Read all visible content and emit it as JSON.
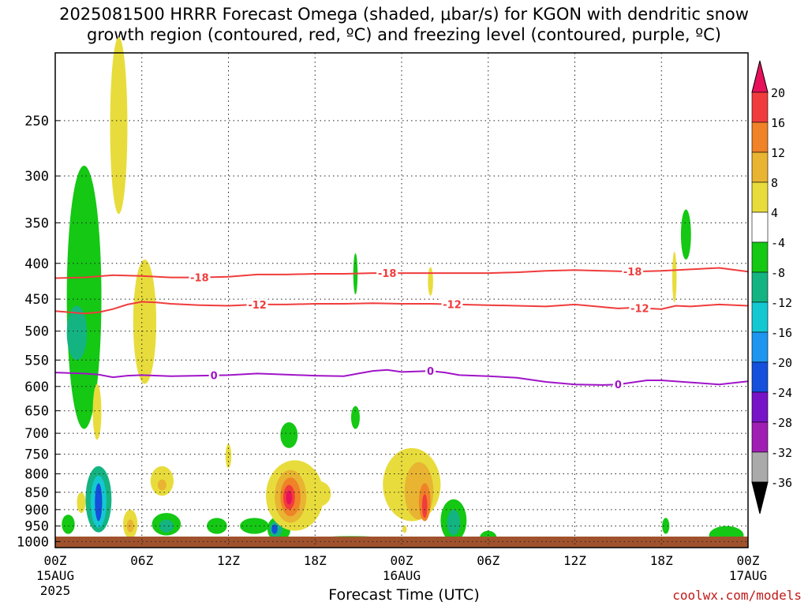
{
  "title": {
    "line1": "2025081500 HRRR Forecast Omega (shaded, μbar/s) for KGON with dendritic snow",
    "line2": "growth region (contoured, red, ºC) and freezing level (contoured, purple, ºC)"
  },
  "credit": "coolwx.com/models",
  "chart_data": {
    "type": "heatmap",
    "title": "2025081500 HRRR Forecast Omega (shaded, μbar/s) for KGON with dendritic snow growth region (contoured, red, ºC) and freezing level (contoured, purple, ºC)",
    "xlabel": "Forecast Time (UTC)",
    "ylabel": "",
    "x_range_hours": [
      0,
      48
    ],
    "y_range_hpa": [
      1020,
      200
    ],
    "grid": true,
    "x_ticks": [
      {
        "hour": 0,
        "label": "00Z",
        "sub1": "15AUG",
        "sub2": "2025"
      },
      {
        "hour": 6,
        "label": "06Z",
        "sub1": "",
        "sub2": ""
      },
      {
        "hour": 12,
        "label": "12Z",
        "sub1": "",
        "sub2": ""
      },
      {
        "hour": 18,
        "label": "18Z",
        "sub1": "",
        "sub2": ""
      },
      {
        "hour": 24,
        "label": "00Z",
        "sub1": "16AUG",
        "sub2": ""
      },
      {
        "hour": 30,
        "label": "06Z",
        "sub1": "",
        "sub2": ""
      },
      {
        "hour": 36,
        "label": "12Z",
        "sub1": "",
        "sub2": ""
      },
      {
        "hour": 42,
        "label": "18Z",
        "sub1": "",
        "sub2": ""
      },
      {
        "hour": 48,
        "label": "00Z",
        "sub1": "17AUG",
        "sub2": ""
      }
    ],
    "y_ticks": [
      250,
      300,
      350,
      400,
      450,
      500,
      550,
      600,
      650,
      700,
      750,
      800,
      850,
      900,
      950,
      1000
    ],
    "colorbar": {
      "labels": [
        "20",
        "16",
        "12",
        "8",
        "4",
        "-4",
        "-8",
        "-12",
        "-16",
        "-20",
        "-24",
        "-28",
        "-32",
        "-36"
      ],
      "colors": [
        "#e8105a",
        "#f03c3c",
        "#f08228",
        "#e8b432",
        "#e8dc3c",
        "#ffffff",
        "#14c814",
        "#14b482",
        "#14c8d2",
        "#1e96f0",
        "#1450dc",
        "#7814c8",
        "#a01eb4",
        "#aaaaaa",
        "#000000"
      ]
    },
    "contours": [
      {
        "name": "-18",
        "color": "#f03c3c",
        "labels_at_hours": [
          10,
          23,
          40
        ],
        "points": [
          [
            0,
            420
          ],
          [
            2,
            419
          ],
          [
            4,
            416
          ],
          [
            6,
            417
          ],
          [
            8,
            419
          ],
          [
            10,
            419
          ],
          [
            12,
            418
          ],
          [
            14,
            415
          ],
          [
            16,
            415
          ],
          [
            18,
            414
          ],
          [
            20,
            414
          ],
          [
            22,
            413
          ],
          [
            24,
            413
          ],
          [
            26,
            413
          ],
          [
            28,
            413
          ],
          [
            30,
            413
          ],
          [
            32,
            412
          ],
          [
            34,
            410
          ],
          [
            36,
            409
          ],
          [
            38,
            410
          ],
          [
            40,
            411
          ],
          [
            42,
            410
          ],
          [
            44,
            408
          ],
          [
            46,
            406
          ],
          [
            48,
            411
          ]
        ]
      },
      {
        "name": "-12",
        "color": "#f03c3c",
        "labels_at_hours": [
          14,
          27.5,
          40.5
        ],
        "points": [
          [
            0,
            468
          ],
          [
            1,
            470
          ],
          [
            2,
            472
          ],
          [
            3,
            470
          ],
          [
            4,
            465
          ],
          [
            5,
            458
          ],
          [
            6,
            454
          ],
          [
            7,
            455
          ],
          [
            8,
            457
          ],
          [
            10,
            459
          ],
          [
            12,
            460
          ],
          [
            14,
            458
          ],
          [
            16,
            458
          ],
          [
            18,
            457
          ],
          [
            20,
            457
          ],
          [
            22,
            456
          ],
          [
            24,
            457
          ],
          [
            26,
            457
          ],
          [
            28,
            458
          ],
          [
            30,
            459
          ],
          [
            32,
            460
          ],
          [
            34,
            461
          ],
          [
            36,
            458
          ],
          [
            38,
            462
          ],
          [
            39,
            464
          ],
          [
            40,
            463
          ],
          [
            42,
            465
          ],
          [
            43,
            460
          ],
          [
            44,
            461
          ],
          [
            46,
            458
          ],
          [
            48,
            460
          ]
        ]
      },
      {
        "name": "0",
        "color": "#a014c8",
        "labels_at_hours": [
          11,
          26,
          39
        ],
        "points": [
          [
            0,
            573
          ],
          [
            2,
            575
          ],
          [
            3,
            577
          ],
          [
            4,
            582
          ],
          [
            5,
            579
          ],
          [
            6,
            578
          ],
          [
            8,
            580
          ],
          [
            10,
            579
          ],
          [
            12,
            578
          ],
          [
            14,
            575
          ],
          [
            16,
            577
          ],
          [
            18,
            579
          ],
          [
            20,
            580
          ],
          [
            21,
            575
          ],
          [
            22,
            570
          ],
          [
            23,
            568
          ],
          [
            24,
            572
          ],
          [
            25,
            571
          ],
          [
            26,
            570
          ],
          [
            27,
            573
          ],
          [
            28,
            578
          ],
          [
            30,
            580
          ],
          [
            32,
            583
          ],
          [
            34,
            591
          ],
          [
            36,
            596
          ],
          [
            38,
            597
          ],
          [
            39,
            596
          ],
          [
            40,
            592
          ],
          [
            41,
            588
          ],
          [
            42,
            588
          ],
          [
            44,
            592
          ],
          [
            46,
            596
          ],
          [
            48,
            590
          ]
        ]
      }
    ],
    "omega_regions": [
      {
        "cx": 2.0,
        "cy": 490,
        "rx": 1.2,
        "ry": 200,
        "val": -6
      },
      {
        "cx": 1.5,
        "cy": 505,
        "rx": 0.7,
        "ry": 45,
        "val": -10
      },
      {
        "cx": 4.4,
        "cy": 265,
        "rx": 0.6,
        "ry": 75,
        "val": 5
      },
      {
        "cx": 6.2,
        "cy": 495,
        "rx": 0.8,
        "ry": 100,
        "val": 5
      },
      {
        "cx": 2.9,
        "cy": 655,
        "rx": 0.3,
        "ry": 60,
        "val": 5
      },
      {
        "cx": 3.0,
        "cy": 875,
        "rx": 0.9,
        "ry": 95,
        "val": -10
      },
      {
        "cx": 3.0,
        "cy": 880,
        "rx": 0.55,
        "ry": 75,
        "val": -15
      },
      {
        "cx": 3.0,
        "cy": 880,
        "rx": 0.25,
        "ry": 55,
        "val": -22
      },
      {
        "cx": 1.8,
        "cy": 880,
        "rx": 0.3,
        "ry": 30,
        "val": 5
      },
      {
        "cx": 0.9,
        "cy": 945,
        "rx": 0.45,
        "ry": 30,
        "val": -6
      },
      {
        "cx": 5.2,
        "cy": 945,
        "rx": 0.5,
        "ry": 45,
        "val": 5
      },
      {
        "cx": 5.2,
        "cy": 950,
        "rx": 0.25,
        "ry": 20,
        "val": 9
      },
      {
        "cx": 7.4,
        "cy": 820,
        "rx": 0.8,
        "ry": 40,
        "val": 5
      },
      {
        "cx": 7.4,
        "cy": 830,
        "rx": 0.3,
        "ry": 15,
        "val": 9
      },
      {
        "cx": 7.7,
        "cy": 945,
        "rx": 1.0,
        "ry": 35,
        "val": -6
      },
      {
        "cx": 7.7,
        "cy": 950,
        "rx": 0.5,
        "ry": 20,
        "val": -10
      },
      {
        "cx": 11.2,
        "cy": 950,
        "rx": 0.7,
        "ry": 25,
        "val": -6
      },
      {
        "cx": 12.0,
        "cy": 755,
        "rx": 0.2,
        "ry": 30,
        "val": 5
      },
      {
        "cx": 13.8,
        "cy": 950,
        "rx": 1.0,
        "ry": 25,
        "val": -6
      },
      {
        "cx": 15.5,
        "cy": 960,
        "rx": 0.8,
        "ry": 40,
        "val": -6
      },
      {
        "cx": 15.3,
        "cy": 960,
        "rx": 0.45,
        "ry": 25,
        "val": -10
      },
      {
        "cx": 15.2,
        "cy": 960,
        "rx": 0.2,
        "ry": 15,
        "val": -20
      },
      {
        "cx": 16.2,
        "cy": 705,
        "rx": 0.6,
        "ry": 30,
        "val": -6
      },
      {
        "cx": 16.6,
        "cy": 865,
        "rx": 2.0,
        "ry": 100,
        "val": 5
      },
      {
        "cx": 16.3,
        "cy": 865,
        "rx": 1.1,
        "ry": 75,
        "val": 9
      },
      {
        "cx": 16.3,
        "cy": 865,
        "rx": 0.7,
        "ry": 55,
        "val": 13
      },
      {
        "cx": 16.2,
        "cy": 865,
        "rx": 0.4,
        "ry": 35,
        "val": 17
      },
      {
        "cx": 16.2,
        "cy": 865,
        "rx": 0.2,
        "ry": 20,
        "val": 21
      },
      {
        "cx": 18.3,
        "cy": 855,
        "rx": 0.8,
        "ry": 35,
        "val": 5
      },
      {
        "cx": 20.5,
        "cy": 1000,
        "rx": 3.2,
        "ry": 18,
        "val": -6
      },
      {
        "cx": 20.8,
        "cy": 415,
        "rx": 0.15,
        "ry": 28,
        "val": -6
      },
      {
        "cx": 20.8,
        "cy": 665,
        "rx": 0.3,
        "ry": 25,
        "val": -6
      },
      {
        "cx": 26.0,
        "cy": 425,
        "rx": 0.18,
        "ry": 20,
        "val": 5
      },
      {
        "cx": 24.7,
        "cy": 835,
        "rx": 2.0,
        "ry": 100,
        "val": 5
      },
      {
        "cx": 25.2,
        "cy": 850,
        "rx": 1.0,
        "ry": 80,
        "val": 9
      },
      {
        "cx": 25.6,
        "cy": 880,
        "rx": 0.4,
        "ry": 55,
        "val": 13
      },
      {
        "cx": 25.6,
        "cy": 890,
        "rx": 0.18,
        "ry": 35,
        "val": 17
      },
      {
        "cx": 24.2,
        "cy": 960,
        "rx": 0.15,
        "ry": 12,
        "val": 5
      },
      {
        "cx": 27.6,
        "cy": 935,
        "rx": 0.9,
        "ry": 65,
        "val": -6
      },
      {
        "cx": 27.6,
        "cy": 940,
        "rx": 0.45,
        "ry": 40,
        "val": -10
      },
      {
        "cx": 30.0,
        "cy": 990,
        "rx": 0.6,
        "ry": 25,
        "val": -6
      },
      {
        "cx": 43.7,
        "cy": 365,
        "rx": 0.35,
        "ry": 30,
        "val": -6
      },
      {
        "cx": 42.9,
        "cy": 420,
        "rx": 0.15,
        "ry": 35,
        "val": 5
      },
      {
        "cx": 42.3,
        "cy": 950,
        "rx": 0.25,
        "ry": 25,
        "val": -6
      },
      {
        "cx": 46.5,
        "cy": 980,
        "rx": 1.2,
        "ry": 30,
        "val": -6
      }
    ]
  }
}
